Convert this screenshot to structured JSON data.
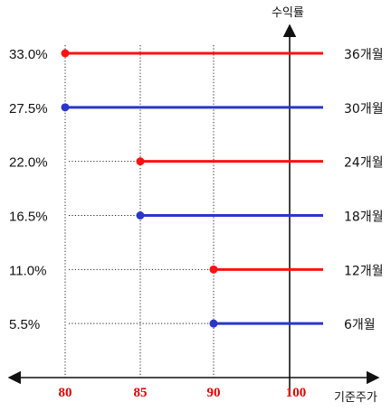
{
  "chart_data": {
    "type": "line",
    "xlabel": "기준주가",
    "ylabel": "수익률",
    "x_ticks": [
      {
        "value": 80,
        "label": "80",
        "color": "#e00000"
      },
      {
        "value": 85,
        "label": "85",
        "color": "#e00000"
      },
      {
        "value": 90,
        "label": "90",
        "color": "#e00000"
      },
      {
        "value": 100,
        "label": "100",
        "color": "#e00000"
      }
    ],
    "series": [
      {
        "name": "36개월",
        "y": 33.0,
        "ylabel": "33.0%",
        "x_start": 80,
        "color": "#ff1111"
      },
      {
        "name": "30개월",
        "y": 27.5,
        "ylabel": "27.5%",
        "x_start": 80,
        "color": "#2a36c8"
      },
      {
        "name": "24개월",
        "y": 22.0,
        "ylabel": "22.0%",
        "x_start": 85,
        "color": "#ff1111"
      },
      {
        "name": "18개월",
        "y": 16.5,
        "ylabel": "16.5%",
        "x_start": 85,
        "color": "#2a36c8"
      },
      {
        "name": "12개월",
        "y": 11.0,
        "ylabel": "11.0%",
        "x_start": 90,
        "color": "#ff1111"
      },
      {
        "name": "6개월",
        "y": 5.5,
        "ylabel": "5.5%",
        "x_start": 90,
        "color": "#2a36c8"
      }
    ],
    "grid": "dotted guides",
    "legend": "right"
  }
}
